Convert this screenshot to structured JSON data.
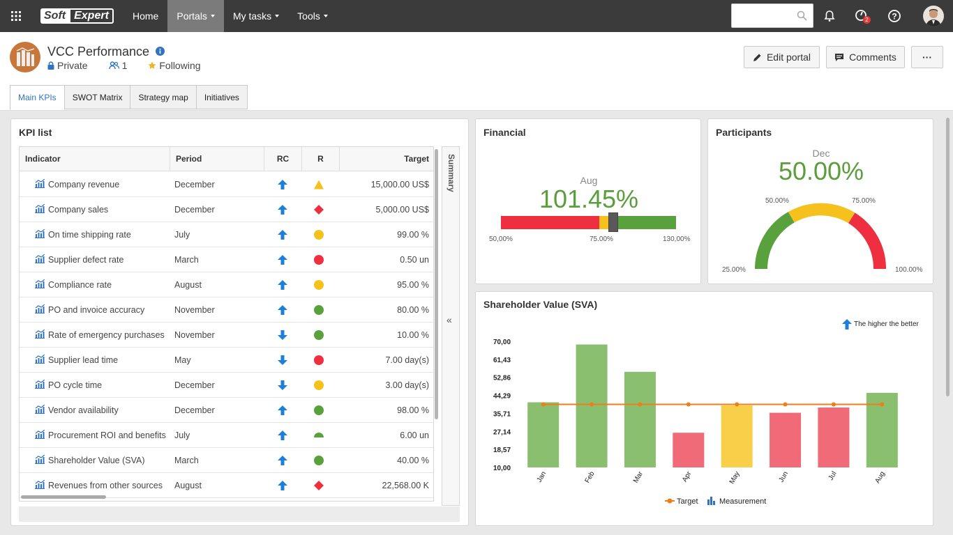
{
  "topbar": {
    "logo_left": "Soft",
    "logo_right": "Expert",
    "nav": [
      {
        "label": "Home",
        "active": false,
        "caret": false
      },
      {
        "label": "Portals",
        "active": true,
        "caret": true
      },
      {
        "label": "My tasks",
        "active": false,
        "caret": true
      },
      {
        "label": "Tools",
        "active": false,
        "caret": true
      }
    ],
    "search_placeholder": "",
    "notification_count": "2"
  },
  "portal": {
    "title": "VCC Performance",
    "privacy": "Private",
    "members": "1",
    "following": "Following",
    "edit_label": "Edit portal",
    "comments_label": "Comments",
    "more_label": "···"
  },
  "tabs": [
    {
      "label": "Main KPIs",
      "active": true
    },
    {
      "label": "SWOT Matrix",
      "active": false
    },
    {
      "label": "Strategy map",
      "active": false
    },
    {
      "label": "Initiatives",
      "active": false
    }
  ],
  "kpi": {
    "title": "KPI list",
    "summary_label": "Summary",
    "columns": {
      "indicator": "Indicator",
      "period": "Period",
      "rc": "RC",
      "r": "R",
      "target": "Target"
    },
    "rows": [
      {
        "indicator": "Company revenue",
        "period": "December",
        "rc": "up",
        "r": "triangle-yellow",
        "target": "15,000.00 US$"
      },
      {
        "indicator": "Company sales",
        "period": "December",
        "rc": "up",
        "r": "diamond-red",
        "target": "5,000.00 US$"
      },
      {
        "indicator": "On time shipping rate",
        "period": "July",
        "rc": "up",
        "r": "circle-yellow",
        "target": "99.00 %"
      },
      {
        "indicator": "Supplier defect rate",
        "period": "March",
        "rc": "up",
        "r": "circle-red",
        "target": "0.50 un"
      },
      {
        "indicator": "Compliance rate",
        "period": "August",
        "rc": "up",
        "r": "circle-yellow",
        "target": "95.00 %"
      },
      {
        "indicator": "PO and invoice accuracy",
        "period": "November",
        "rc": "up",
        "r": "circle-green",
        "target": "80.00 %"
      },
      {
        "indicator": "Rate of emergency purchases",
        "period": "November",
        "rc": "down",
        "r": "circle-green",
        "target": "10.00 %"
      },
      {
        "indicator": "Supplier lead time",
        "period": "May",
        "rc": "down",
        "r": "circle-red",
        "target": "7.00 day(s)"
      },
      {
        "indicator": "PO cycle time",
        "period": "December",
        "rc": "down",
        "r": "circle-yellow",
        "target": "3.00 day(s)"
      },
      {
        "indicator": "Vendor availability",
        "period": "December",
        "rc": "up",
        "r": "circle-green",
        "target": "98.00 %"
      },
      {
        "indicator": "Procurement ROI and benefits",
        "period": "July",
        "rc": "up",
        "r": "half-green",
        "target": "6.00 un"
      },
      {
        "indicator": "Shareholder Value (SVA)",
        "period": "March",
        "rc": "up",
        "r": "circle-green",
        "target": "40.00 %"
      },
      {
        "indicator": "Revenues from other sources",
        "period": "August",
        "rc": "up",
        "r": "diamond-red",
        "target": "22,568.00 K"
      }
    ]
  },
  "financial": {
    "title": "Financial",
    "period": "Aug",
    "value": "101.45%",
    "scale_min": "50,00%",
    "scale_mid": "75.00%",
    "scale_max": "130,00%",
    "value_fraction": 0.64
  },
  "participants": {
    "title": "Participants",
    "period": "Dec",
    "value": "50.00%",
    "labels": {
      "min": "25.00%",
      "low": "50.00%",
      "high": "75.00%",
      "max": "100.00%"
    }
  },
  "sva": {
    "title": "Shareholder Value (SVA)",
    "direction_label": "The higher the better",
    "legend_target": "Target",
    "legend_measurement": "Measurement",
    "colors": {
      "green": "#8abf6f",
      "yellow": "#f7cf49",
      "red": "#f06a78",
      "target": "#ef7d1a"
    }
  },
  "chart_data": {
    "type": "bar",
    "title": "Shareholder Value (SVA)",
    "categories": [
      "Jan",
      "Feb",
      "Mar",
      "Apr",
      "May",
      "Jun",
      "Jul",
      "Aug"
    ],
    "y_ticks": [
      "70,00",
      "61,43",
      "52,86",
      "44,29",
      "35,71",
      "27,14",
      "18,57",
      "10,00"
    ],
    "ylim": [
      10,
      70
    ],
    "series": [
      {
        "name": "Measurement",
        "type": "bar",
        "values": [
          41.0,
          68.5,
          55.5,
          26.5,
          39.5,
          36.0,
          38.5,
          45.5
        ],
        "status": [
          "green",
          "green",
          "green",
          "red",
          "yellow",
          "red",
          "red",
          "green"
        ]
      },
      {
        "name": "Target",
        "type": "line",
        "values": [
          40,
          40,
          40,
          40,
          40,
          40,
          40,
          40
        ]
      }
    ]
  }
}
